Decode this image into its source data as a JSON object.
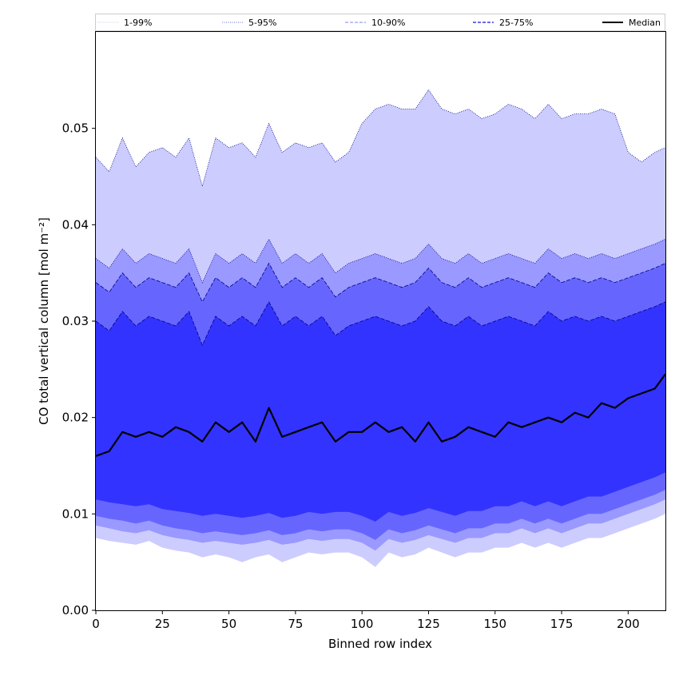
{
  "chart_data": {
    "type": "area",
    "xlabel": "Binned row index",
    "ylabel": "CO total vertical column [mol m⁻²]",
    "xlim": [
      0,
      214
    ],
    "ylim": [
      0,
      0.06
    ],
    "xticks": [
      0,
      25,
      50,
      75,
      100,
      125,
      150,
      175,
      200
    ],
    "yticks": [
      0.0,
      0.01,
      0.02,
      0.03,
      0.04,
      0.05
    ],
    "ytick_labels": [
      "0.00",
      "0.01",
      "0.02",
      "0.03",
      "0.04",
      "0.05"
    ],
    "legend_position": "top, horizontal",
    "grid": false,
    "colors": {
      "band_1_99": "#ccccff",
      "band_5_95": "#9999ff",
      "band_10_90": "#6666ff",
      "band_25_75": "#3333ff",
      "median": "#000000",
      "edge": "#00008b"
    },
    "legend": [
      {
        "label": "1-99%",
        "style": "dotted-light"
      },
      {
        "label": "5-95%",
        "style": "dotted-dark"
      },
      {
        "label": "10-90%",
        "style": "dashed-light"
      },
      {
        "label": "25-75%",
        "style": "dashed-dark"
      },
      {
        "label": "Median",
        "style": "solid-black"
      }
    ],
    "x": [
      0,
      5,
      10,
      15,
      20,
      25,
      30,
      35,
      40,
      45,
      50,
      55,
      60,
      65,
      70,
      75,
      80,
      85,
      90,
      95,
      100,
      105,
      110,
      115,
      120,
      125,
      130,
      135,
      140,
      145,
      150,
      155,
      160,
      165,
      170,
      175,
      180,
      185,
      190,
      195,
      200,
      205,
      210,
      214
    ],
    "series": [
      {
        "name": "1-99%",
        "lower": [
          0.0075,
          0.0072,
          0.007,
          0.0068,
          0.0072,
          0.0065,
          0.0062,
          0.006,
          0.0055,
          0.0058,
          0.0055,
          0.005,
          0.0055,
          0.0058,
          0.005,
          0.0055,
          0.006,
          0.0058,
          0.006,
          0.006,
          0.0055,
          0.0045,
          0.006,
          0.0055,
          0.0058,
          0.0065,
          0.006,
          0.0055,
          0.006,
          0.006,
          0.0065,
          0.0065,
          0.007,
          0.0065,
          0.007,
          0.0065,
          0.007,
          0.0075,
          0.0075,
          0.008,
          0.0085,
          0.009,
          0.0095,
          0.01
        ],
        "upper": [
          0.047,
          0.0455,
          0.049,
          0.046,
          0.0475,
          0.048,
          0.047,
          0.049,
          0.044,
          0.049,
          0.048,
          0.0485,
          0.047,
          0.0505,
          0.0475,
          0.0485,
          0.048,
          0.0485,
          0.0465,
          0.0475,
          0.0505,
          0.052,
          0.0525,
          0.052,
          0.052,
          0.054,
          0.052,
          0.0515,
          0.052,
          0.051,
          0.0515,
          0.0525,
          0.052,
          0.051,
          0.0525,
          0.051,
          0.0515,
          0.0515,
          0.052,
          0.0515,
          0.0475,
          0.0465,
          0.0475,
          0.048
        ]
      },
      {
        "name": "5-95%",
        "lower": [
          0.0088,
          0.0085,
          0.0082,
          0.008,
          0.0083,
          0.0078,
          0.0075,
          0.0073,
          0.007,
          0.0072,
          0.007,
          0.0068,
          0.007,
          0.0073,
          0.0068,
          0.007,
          0.0074,
          0.0072,
          0.0074,
          0.0074,
          0.007,
          0.0062,
          0.0074,
          0.007,
          0.0073,
          0.0078,
          0.0074,
          0.007,
          0.0075,
          0.0075,
          0.008,
          0.008,
          0.0085,
          0.008,
          0.0085,
          0.008,
          0.0085,
          0.009,
          0.009,
          0.0095,
          0.01,
          0.0105,
          0.011,
          0.0115
        ],
        "upper": [
          0.0365,
          0.0355,
          0.0375,
          0.036,
          0.037,
          0.0365,
          0.036,
          0.0375,
          0.034,
          0.037,
          0.036,
          0.037,
          0.036,
          0.0385,
          0.036,
          0.037,
          0.036,
          0.037,
          0.035,
          0.036,
          0.0365,
          0.037,
          0.0365,
          0.036,
          0.0365,
          0.038,
          0.0365,
          0.036,
          0.037,
          0.036,
          0.0365,
          0.037,
          0.0365,
          0.036,
          0.0375,
          0.0365,
          0.037,
          0.0365,
          0.037,
          0.0365,
          0.037,
          0.0375,
          0.038,
          0.0385
        ]
      },
      {
        "name": "10-90%",
        "lower": [
          0.0098,
          0.0095,
          0.0093,
          0.009,
          0.0093,
          0.0088,
          0.0085,
          0.0083,
          0.008,
          0.0082,
          0.008,
          0.0078,
          0.008,
          0.0083,
          0.0078,
          0.008,
          0.0084,
          0.0082,
          0.0084,
          0.0084,
          0.008,
          0.0073,
          0.0084,
          0.008,
          0.0083,
          0.0088,
          0.0084,
          0.008,
          0.0085,
          0.0085,
          0.009,
          0.009,
          0.0095,
          0.009,
          0.0095,
          0.009,
          0.0095,
          0.01,
          0.01,
          0.0105,
          0.011,
          0.0115,
          0.012,
          0.0125
        ],
        "upper": [
          0.034,
          0.033,
          0.035,
          0.0335,
          0.0345,
          0.034,
          0.0335,
          0.035,
          0.032,
          0.0345,
          0.0335,
          0.0345,
          0.0335,
          0.036,
          0.0335,
          0.0345,
          0.0335,
          0.0345,
          0.0325,
          0.0335,
          0.034,
          0.0345,
          0.034,
          0.0335,
          0.034,
          0.0355,
          0.034,
          0.0335,
          0.0345,
          0.0335,
          0.034,
          0.0345,
          0.034,
          0.0335,
          0.035,
          0.034,
          0.0345,
          0.034,
          0.0345,
          0.034,
          0.0345,
          0.035,
          0.0355,
          0.036
        ]
      },
      {
        "name": "25-75%",
        "lower": [
          0.0115,
          0.0112,
          0.011,
          0.0108,
          0.011,
          0.0105,
          0.0103,
          0.0101,
          0.0098,
          0.01,
          0.0098,
          0.0096,
          0.0098,
          0.0101,
          0.0096,
          0.0098,
          0.0102,
          0.01,
          0.0102,
          0.0102,
          0.0098,
          0.0092,
          0.0102,
          0.0098,
          0.0101,
          0.0106,
          0.0102,
          0.0098,
          0.0103,
          0.0103,
          0.0108,
          0.0108,
          0.0113,
          0.0108,
          0.0113,
          0.0108,
          0.0113,
          0.0118,
          0.0118,
          0.0123,
          0.0128,
          0.0133,
          0.0138,
          0.0143
        ],
        "upper": [
          0.03,
          0.029,
          0.031,
          0.0295,
          0.0305,
          0.03,
          0.0295,
          0.031,
          0.0275,
          0.0305,
          0.0295,
          0.0305,
          0.0295,
          0.032,
          0.0295,
          0.0305,
          0.0295,
          0.0305,
          0.0285,
          0.0295,
          0.03,
          0.0305,
          0.03,
          0.0295,
          0.03,
          0.0315,
          0.03,
          0.0295,
          0.0305,
          0.0295,
          0.03,
          0.0305,
          0.03,
          0.0295,
          0.031,
          0.03,
          0.0305,
          0.03,
          0.0305,
          0.03,
          0.0305,
          0.031,
          0.0315,
          0.032
        ]
      }
    ],
    "median": {
      "name": "Median",
      "values": [
        0.016,
        0.0165,
        0.0185,
        0.018,
        0.0185,
        0.018,
        0.019,
        0.0185,
        0.0175,
        0.0195,
        0.0185,
        0.0195,
        0.0175,
        0.021,
        0.018,
        0.0185,
        0.019,
        0.0195,
        0.0175,
        0.0185,
        0.0185,
        0.0195,
        0.0185,
        0.019,
        0.0175,
        0.0195,
        0.0175,
        0.018,
        0.019,
        0.0185,
        0.018,
        0.0195,
        0.019,
        0.0195,
        0.02,
        0.0195,
        0.0205,
        0.02,
        0.0215,
        0.021,
        0.022,
        0.0225,
        0.023,
        0.0245
      ]
    }
  }
}
